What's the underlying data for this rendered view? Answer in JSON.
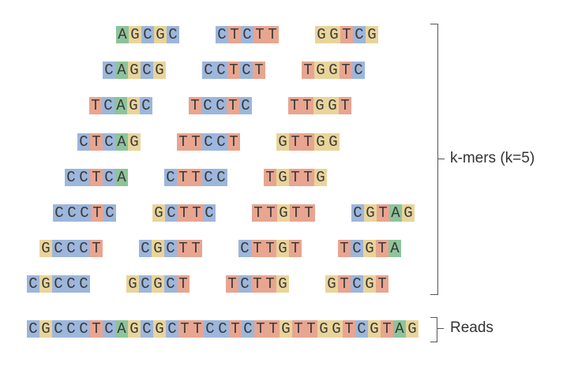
{
  "colors": {
    "A": "#8dc49a",
    "C": "#9db6dc",
    "G": "#e9d49a",
    "T": "#e8a590"
  },
  "kmer_rows": [
    [
      "AGCGC",
      "CTCTT",
      "GGTCG"
    ],
    [
      "CAGCG",
      "CCTCT",
      "TGGTC"
    ],
    [
      "TCAGC",
      "TCCTC",
      "TTGGT"
    ],
    [
      "CTCAG",
      "TTCCT",
      "GTTGG"
    ],
    [
      "CCTCA",
      "CTTCC",
      "TGTTG"
    ],
    [
      "CCCTC",
      "GCTTC",
      "TTGTT",
      "CGTAG"
    ],
    [
      "GCCCT",
      "CGCTT",
      "CTTGT",
      "TCGTA"
    ],
    [
      "CGCCC",
      "GCGCT",
      "TCTTG",
      "GTCGT"
    ]
  ],
  "read": "CGCCCTCAGCGCTTCCTCTTGTTGGTCGTAG",
  "labels": {
    "kmers": "k-mers (k=5)",
    "reads": "Reads"
  }
}
